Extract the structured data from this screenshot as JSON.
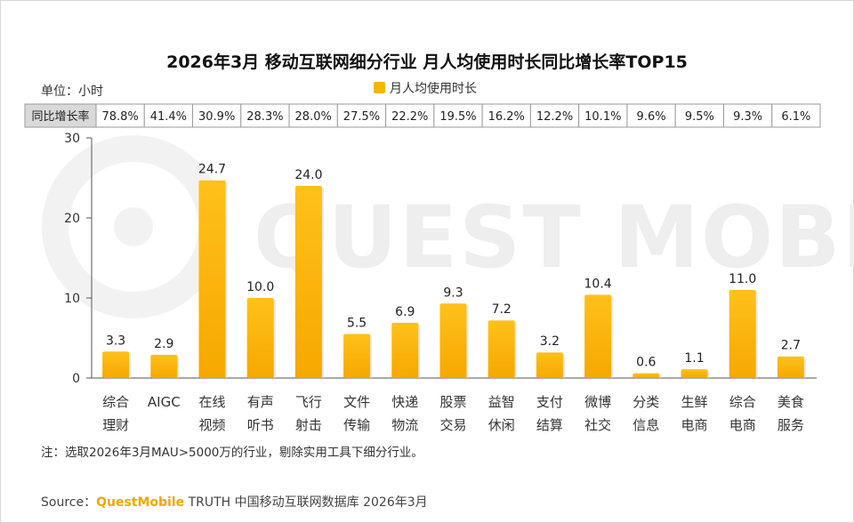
{
  "header": {
    "title": "2026年3月 移动互联网细分行业 月人均使用时长同比增长率TOP15",
    "unit": "单位：小时"
  },
  "legend": {
    "label": "月人均使用时长",
    "color": "#f7b500"
  },
  "growth_table": {
    "header": "同比增长率",
    "values": [
      "78.8%",
      "41.4%",
      "30.9%",
      "28.3%",
      "28.0%",
      "27.5%",
      "22.2%",
      "19.5%",
      "16.2%",
      "12.2%",
      "10.1%",
      "9.6%",
      "9.5%",
      "9.3%",
      "6.1%"
    ]
  },
  "watermark": "QUEST MOBILE",
  "chart_data": {
    "type": "bar",
    "categories": [
      [
        "综合",
        "理财"
      ],
      [
        "AIGC"
      ],
      [
        "在线",
        "视频"
      ],
      [
        "有声",
        "听书"
      ],
      [
        "飞行",
        "射击"
      ],
      [
        "文件",
        "传输"
      ],
      [
        "快递",
        "物流"
      ],
      [
        "股票",
        "交易"
      ],
      [
        "益智",
        "休闲"
      ],
      [
        "支付",
        "结算"
      ],
      [
        "微博",
        "社交"
      ],
      [
        "分类",
        "信息"
      ],
      [
        "生鲜",
        "电商"
      ],
      [
        "综合",
        "电商"
      ],
      [
        "美食",
        "服务"
      ]
    ],
    "values": [
      3.3,
      2.9,
      24.7,
      10.0,
      24.0,
      5.5,
      6.9,
      9.3,
      7.2,
      3.2,
      10.4,
      0.6,
      1.1,
      11.0,
      2.7
    ],
    "value_labels": [
      "3.3",
      "2.9",
      "24.7",
      "10.0",
      "24.0",
      "5.5",
      "6.9",
      "9.3",
      "7.2",
      "3.2",
      "10.4",
      "0.6",
      "1.1",
      "11.0",
      "2.7"
    ],
    "series_name": "月人均使用时长",
    "ylim": [
      0,
      30
    ],
    "yticks": [
      "0",
      "10",
      "20",
      "30"
    ],
    "grid": false,
    "legend_position": "top-center",
    "bar_color": "#f7b500"
  },
  "footer": {
    "note": "注：选取2026年3月MAU>5000万的行业，剔除实用工具下细分行业。",
    "source_prefix": "Source：",
    "source_brand": "QuestMobile",
    "source_suffix": " TRUTH 中国移动互联网数据库 2026年3月"
  }
}
